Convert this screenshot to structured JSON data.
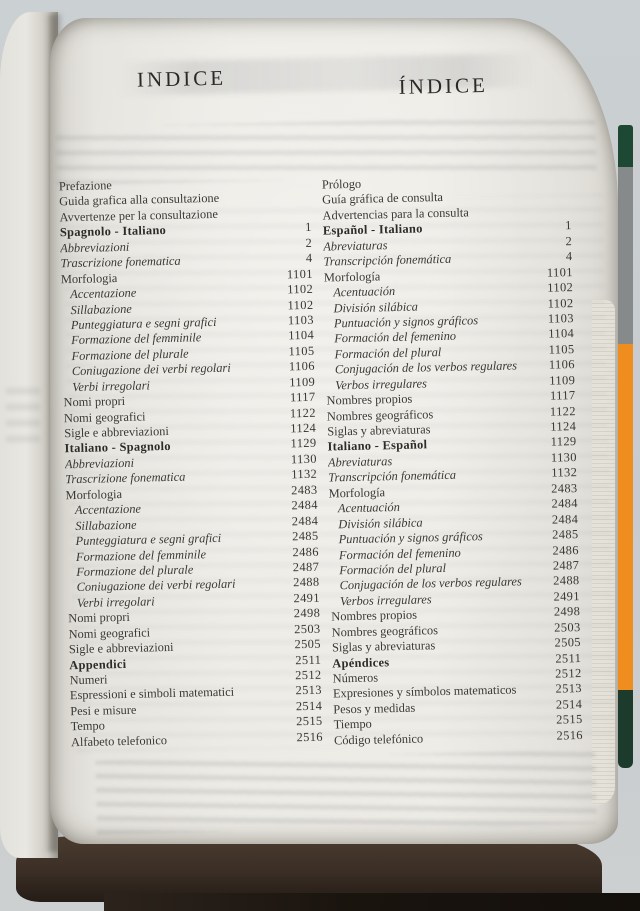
{
  "photo": {
    "background_color": "#c9cdcf",
    "paper_color": "#edebe5",
    "ink_color": "#3a3833",
    "under_cover_color": "#3a2e25",
    "fore_edge_bands": [
      {
        "name": "tab-dark-green",
        "color": "#1d4833"
      },
      {
        "name": "tab-gray",
        "color": "#868a8a"
      },
      {
        "name": "tab-orange",
        "color": "#ef8d1e"
      },
      {
        "name": "cover-dark-green",
        "color": "#1d3b2c"
      }
    ]
  },
  "index": {
    "left_header": "INDICE",
    "right_header": "ÍNDICE",
    "columns": [
      {
        "language": "italiano",
        "rows": [
          {
            "label": "Prefazione",
            "page": "",
            "style": "roman",
            "indent": 0
          },
          {
            "label": "Guida grafica alla consultazione",
            "page": "",
            "style": "roman",
            "indent": 0
          },
          {
            "label": "Avvertenze per la consultazione",
            "page": "",
            "style": "roman",
            "indent": 0
          },
          {
            "label": "Spagnolo - Italiano",
            "page": "1",
            "style": "bold",
            "indent": 0
          },
          {
            "label": "Abbreviazioni",
            "page": "2",
            "style": "italic",
            "indent": 0
          },
          {
            "label": "Trascrizione fonematica",
            "page": "4",
            "style": "italic",
            "indent": 0
          },
          {
            "label": "Morfologia",
            "page": "1101",
            "style": "roman",
            "indent": 0
          },
          {
            "label": "Accentazione",
            "page": "1102",
            "style": "italic",
            "indent": 1
          },
          {
            "label": "Sillabazione",
            "page": "1102",
            "style": "italic",
            "indent": 1
          },
          {
            "label": "Punteggiatura e segni grafici",
            "page": "1103",
            "style": "italic",
            "indent": 1
          },
          {
            "label": "Formazione del femminile",
            "page": "1104",
            "style": "italic",
            "indent": 1
          },
          {
            "label": "Formazione del plurale",
            "page": "1105",
            "style": "italic",
            "indent": 1
          },
          {
            "label": "Coniugazione dei verbi regolari",
            "page": "1106",
            "style": "italic",
            "indent": 1
          },
          {
            "label": "Verbi irregolari",
            "page": "1109",
            "style": "italic",
            "indent": 1
          },
          {
            "label": "Nomi propri",
            "page": "1117",
            "style": "roman",
            "indent": 0
          },
          {
            "label": "Nomi geografici",
            "page": "1122",
            "style": "roman",
            "indent": 0
          },
          {
            "label": "Sigle e abbreviazioni",
            "page": "1124",
            "style": "roman",
            "indent": 0
          },
          {
            "label": "Italiano - Spagnolo",
            "page": "1129",
            "style": "bold",
            "indent": 0
          },
          {
            "label": "Abbreviazioni",
            "page": "1130",
            "style": "italic",
            "indent": 0
          },
          {
            "label": "Trascrizione fonematica",
            "page": "1132",
            "style": "italic",
            "indent": 0
          },
          {
            "label": "Morfologia",
            "page": "2483",
            "style": "roman",
            "indent": 0
          },
          {
            "label": "Accentazione",
            "page": "2484",
            "style": "italic",
            "indent": 1
          },
          {
            "label": "Sillabazione",
            "page": "2484",
            "style": "italic",
            "indent": 1
          },
          {
            "label": "Punteggiatura e segni grafici",
            "page": "2485",
            "style": "italic",
            "indent": 1
          },
          {
            "label": "Formazione del femminile",
            "page": "2486",
            "style": "italic",
            "indent": 1
          },
          {
            "label": "Formazione del plurale",
            "page": "2487",
            "style": "italic",
            "indent": 1
          },
          {
            "label": "Coniugazione dei verbi regolari",
            "page": "2488",
            "style": "italic",
            "indent": 1
          },
          {
            "label": "Verbi irregolari",
            "page": "2491",
            "style": "italic",
            "indent": 1
          },
          {
            "label": "Nomi propri",
            "page": "2498",
            "style": "roman",
            "indent": 0
          },
          {
            "label": "Nomi geografici",
            "page": "2503",
            "style": "roman",
            "indent": 0
          },
          {
            "label": "Sigle e abbreviazioni",
            "page": "2505",
            "style": "roman",
            "indent": 0
          },
          {
            "label": "Appendici",
            "page": "2511",
            "style": "bold",
            "indent": 0
          },
          {
            "label": "Numeri",
            "page": "2512",
            "style": "roman",
            "indent": 0
          },
          {
            "label": "Espressioni e simboli matematici",
            "page": "2513",
            "style": "roman",
            "indent": 0
          },
          {
            "label": "Pesi e misure",
            "page": "2514",
            "style": "roman",
            "indent": 0
          },
          {
            "label": "Tempo",
            "page": "2515",
            "style": "roman",
            "indent": 0
          },
          {
            "label": "Alfabeto telefonico",
            "page": "2516",
            "style": "roman",
            "indent": 0
          }
        ]
      },
      {
        "language": "español",
        "rows": [
          {
            "label": "Prólogo",
            "page": "",
            "style": "roman",
            "indent": 0
          },
          {
            "label": "Guía gráfica de consulta",
            "page": "",
            "style": "roman",
            "indent": 0
          },
          {
            "label": "Advertencias para la consulta",
            "page": "",
            "style": "roman",
            "indent": 0
          },
          {
            "label": "Español - Italiano",
            "page": "1",
            "style": "bold",
            "indent": 0
          },
          {
            "label": "Abreviaturas",
            "page": "2",
            "style": "italic",
            "indent": 0
          },
          {
            "label": "Transcripción fonemática",
            "page": "4",
            "style": "italic",
            "indent": 0
          },
          {
            "label": "Morfología",
            "page": "1101",
            "style": "roman",
            "indent": 0
          },
          {
            "label": "Acentuación",
            "page": "1102",
            "style": "italic",
            "indent": 1
          },
          {
            "label": "División silábica",
            "page": "1102",
            "style": "italic",
            "indent": 1
          },
          {
            "label": "Puntuación y signos gráficos",
            "page": "1103",
            "style": "italic",
            "indent": 1
          },
          {
            "label": "Formación del femenino",
            "page": "1104",
            "style": "italic",
            "indent": 1
          },
          {
            "label": "Formación del plural",
            "page": "1105",
            "style": "italic",
            "indent": 1
          },
          {
            "label": "Conjugación de los verbos regulares",
            "page": "1106",
            "style": "italic",
            "indent": 1
          },
          {
            "label": "Verbos irregulares",
            "page": "1109",
            "style": "italic",
            "indent": 1
          },
          {
            "label": "Nombres propios",
            "page": "1117",
            "style": "roman",
            "indent": 0
          },
          {
            "label": "Nombres geográficos",
            "page": "1122",
            "style": "roman",
            "indent": 0
          },
          {
            "label": "Siglas y abreviaturas",
            "page": "1124",
            "style": "roman",
            "indent": 0
          },
          {
            "label": "Italiano - Español",
            "page": "1129",
            "style": "bold",
            "indent": 0
          },
          {
            "label": "Abreviaturas",
            "page": "1130",
            "style": "italic",
            "indent": 0
          },
          {
            "label": "Transcripción fonemática",
            "page": "1132",
            "style": "italic",
            "indent": 0
          },
          {
            "label": "Morfología",
            "page": "2483",
            "style": "roman",
            "indent": 0
          },
          {
            "label": "Acentuación",
            "page": "2484",
            "style": "italic",
            "indent": 1
          },
          {
            "label": "División silábica",
            "page": "2484",
            "style": "italic",
            "indent": 1
          },
          {
            "label": "Puntuación y signos gráficos",
            "page": "2485",
            "style": "italic",
            "indent": 1
          },
          {
            "label": "Formación del femenino",
            "page": "2486",
            "style": "italic",
            "indent": 1
          },
          {
            "label": "Formación del plural",
            "page": "2487",
            "style": "italic",
            "indent": 1
          },
          {
            "label": "Conjugación de los verbos regulares",
            "page": "2488",
            "style": "italic",
            "indent": 1
          },
          {
            "label": "Verbos irregulares",
            "page": "2491",
            "style": "italic",
            "indent": 1
          },
          {
            "label": "Nombres propios",
            "page": "2498",
            "style": "roman",
            "indent": 0
          },
          {
            "label": "Nombres geográficos",
            "page": "2503",
            "style": "roman",
            "indent": 0
          },
          {
            "label": "Siglas y abreviaturas",
            "page": "2505",
            "style": "roman",
            "indent": 0
          },
          {
            "label": "Apéndices",
            "page": "2511",
            "style": "bold",
            "indent": 0
          },
          {
            "label": "Números",
            "page": "2512",
            "style": "roman",
            "indent": 0
          },
          {
            "label": "Expresiones y símbolos matematicos",
            "page": "2513",
            "style": "roman",
            "indent": 0
          },
          {
            "label": "Pesos y medidas",
            "page": "2514",
            "style": "roman",
            "indent": 0
          },
          {
            "label": "Tiempo",
            "page": "2515",
            "style": "roman",
            "indent": 0
          },
          {
            "label": "Código telefónico",
            "page": "2516",
            "style": "roman",
            "indent": 0
          }
        ]
      }
    ]
  }
}
